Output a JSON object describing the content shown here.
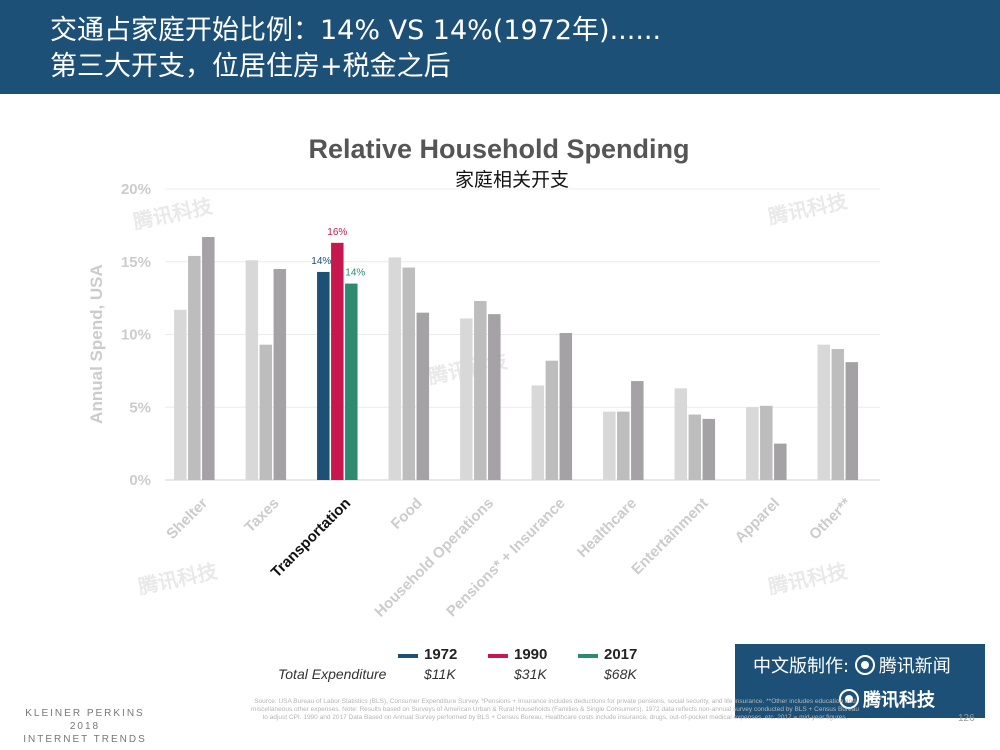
{
  "header": {
    "line1": "交通占家庭开始比例：14% VS 14%(1972年)......",
    "line2": "第三大开支，位居住房+税金之后"
  },
  "chart_data": {
    "type": "bar",
    "title": "Relative Household Spending",
    "subtitle": "家庭相关开支",
    "ylabel": "Annual Spend, USA",
    "xlabel": "",
    "ylim": [
      0,
      20
    ],
    "yticks": [
      0,
      5,
      10,
      15,
      20
    ],
    "ytick_labels": [
      "0%",
      "5%",
      "10%",
      "15%",
      "20%"
    ],
    "grid": true,
    "categories": [
      "Shelter",
      "Taxes",
      "Transportation",
      "Food",
      "Household Operations",
      "Pensions* + Insurance",
      "Healthcare",
      "Entertainment",
      "Apparel",
      "Other**"
    ],
    "highlight_category": "Transportation",
    "series": [
      {
        "name": "1972",
        "values": [
          11.7,
          15.1,
          14.3,
          15.3,
          11.1,
          6.5,
          4.7,
          6.3,
          5.0,
          9.3
        ]
      },
      {
        "name": "1990",
        "values": [
          15.4,
          9.3,
          16.3,
          14.6,
          12.3,
          8.2,
          4.7,
          4.5,
          5.1,
          9.0
        ]
      },
      {
        "name": "2017",
        "values": [
          16.7,
          14.5,
          13.5,
          11.5,
          11.4,
          10.1,
          6.8,
          4.2,
          2.5,
          8.1
        ]
      }
    ],
    "data_labels": [
      {
        "category": "Transportation",
        "series": "1972",
        "text": "14%"
      },
      {
        "category": "Transportation",
        "series": "1990",
        "text": "16%"
      },
      {
        "category": "Transportation",
        "series": "2017",
        "text": "14%"
      }
    ],
    "series_colors_default": [
      "#d8d8d8",
      "#bdbdbd",
      "#a4a2a4"
    ],
    "series_colors_highlight": [
      "#1d5077",
      "#c8174f",
      "#2e8b6e"
    ],
    "legend": {
      "position": "bottom-center",
      "total_label": "Total Expenditure",
      "items": [
        {
          "year": "1972",
          "amount": "$11K",
          "color": "#1d5077"
        },
        {
          "year": "1990",
          "amount": "$31K",
          "color": "#c8174f"
        },
        {
          "year": "2017",
          "amount": "$68K",
          "color": "#2e8b6e"
        }
      ]
    }
  },
  "watermark": {
    "text": "腾讯科技"
  },
  "brand": {
    "made_by": "中文版制作:",
    "news": "腾讯新闻",
    "tech": "腾讯科技"
  },
  "footer": {
    "brand_line1": "KLEINER PERKINS",
    "brand_line2": "2018",
    "brand_line3": "INTERNET TRENDS",
    "source": "Source: USA Bureau of Labor Statistics (BLS), Consumer Expenditure Survey. *Pensions + Insurance includes deductions for private pensions, social security, and life insurance. **Other includes education and miscellaneous other expenses. Note: Results based on Surveys of American Urban & Rural Households (Families & Single Consumers). 1972 data reflects non-annual survey conducted by BLS + Census Bureau to adjust CPI. 1990 and 2017 Data Based on Annual Survey performed by BLS + Census Bureau. Healthcare costs include insurance, drugs, out-of-pocket medical expenses, etc. 2017 = mid-year figures.",
    "page_number": "126"
  }
}
